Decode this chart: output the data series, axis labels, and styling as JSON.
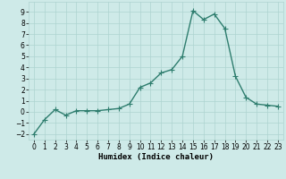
{
  "x": [
    0,
    1,
    2,
    3,
    4,
    5,
    6,
    7,
    8,
    9,
    10,
    11,
    12,
    13,
    14,
    15,
    16,
    17,
    18,
    19,
    20,
    21,
    22,
    23
  ],
  "y": [
    -2,
    -0.7,
    0.2,
    -0.3,
    0.1,
    0.1,
    0.1,
    0.2,
    0.3,
    0.7,
    2.2,
    2.6,
    3.5,
    3.8,
    5.0,
    9.1,
    8.3,
    8.8,
    7.5,
    3.2,
    1.3,
    0.7,
    0.6,
    0.5
  ],
  "line_color": "#2e7d6e",
  "marker": "+",
  "markersize": 4,
  "linewidth": 1.0,
  "bg_color": "#ceeae8",
  "grid_color": "#aed4d0",
  "xlabel": "Humidex (Indice chaleur)",
  "xlim": [
    -0.5,
    23.5
  ],
  "ylim": [
    -2.5,
    9.9
  ],
  "yticks": [
    -2,
    -1,
    0,
    1,
    2,
    3,
    4,
    5,
    6,
    7,
    8,
    9
  ],
  "xticks": [
    0,
    1,
    2,
    3,
    4,
    5,
    6,
    7,
    8,
    9,
    10,
    11,
    12,
    13,
    14,
    15,
    16,
    17,
    18,
    19,
    20,
    21,
    22,
    23
  ],
  "tick_fontsize": 5.5,
  "xlabel_fontsize": 6.5
}
